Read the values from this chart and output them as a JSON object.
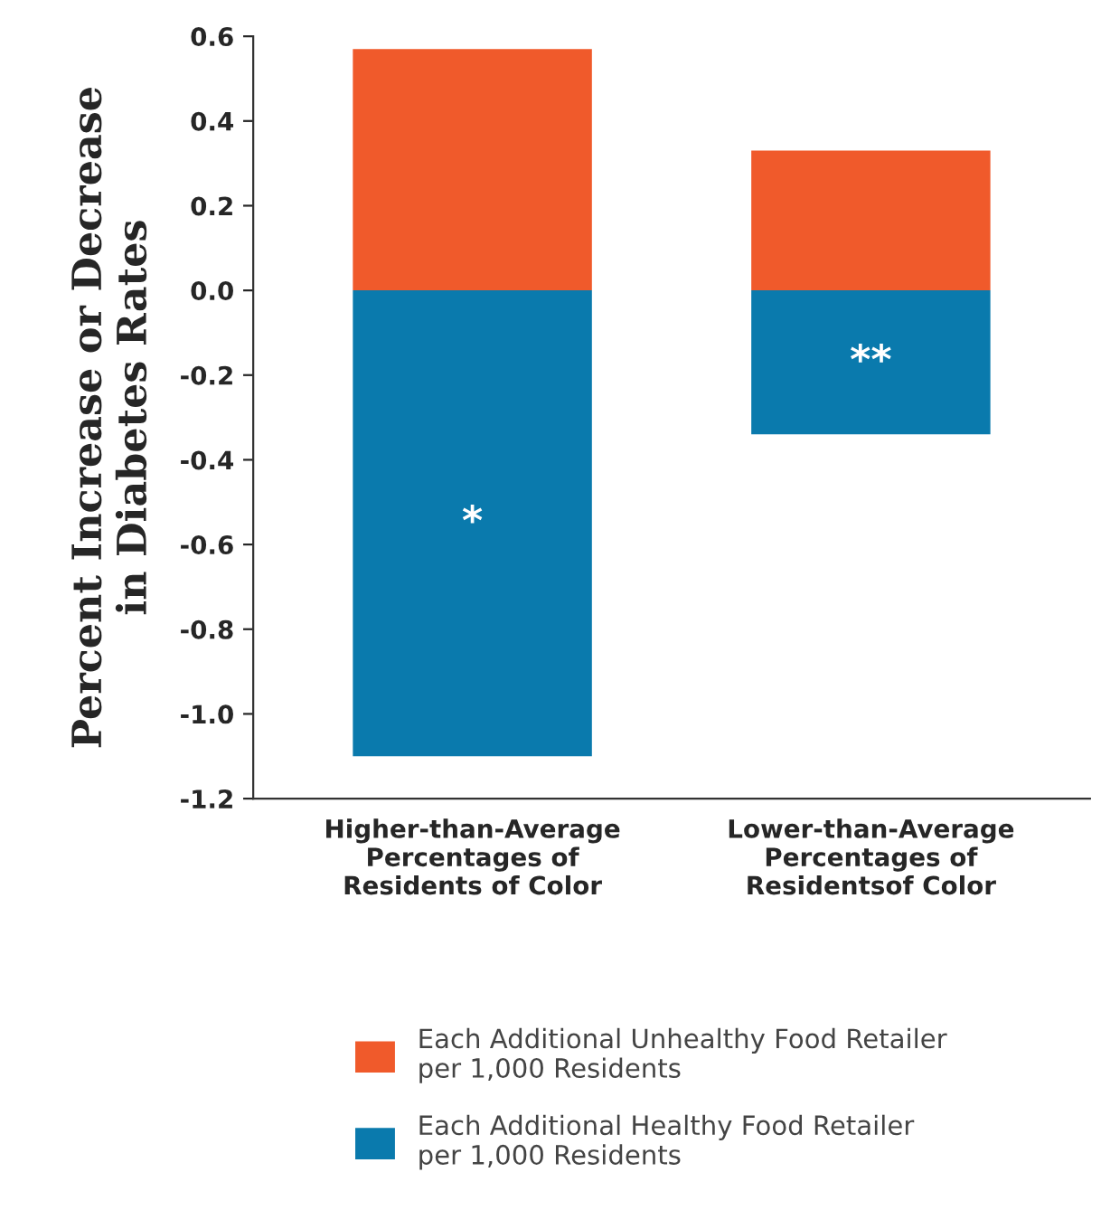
{
  "chart_data": {
    "type": "bar",
    "stacked": true,
    "ylabel": "Percent Increase or Decrease\nin Diabetes Rates",
    "categories": [
      "Higher-than-Average\nPercentages of\nResidents of Color",
      "Lower-than-Average\nPercentages of\nResidentsof Color"
    ],
    "series": [
      {
        "name": "Each Additional Unhealthy Food Retailer\nper 1,000 Residents",
        "color": "#f05a2b",
        "values": [
          0.57,
          0.33
        ]
      },
      {
        "name": "Each Additional Healthy Food Retailer\nper 1,000 Residents",
        "color": "#0a7aad",
        "values": [
          -1.1,
          -0.34
        ]
      }
    ],
    "ylim": [
      -1.2,
      0.6
    ],
    "yticks": [
      {
        "value": -1.2,
        "label": "-1.2"
      },
      {
        "value": -1.0,
        "label": "-1.0"
      },
      {
        "value": -0.8,
        "label": "-0.8"
      },
      {
        "value": -0.6,
        "label": "-0.6"
      },
      {
        "value": -0.4,
        "label": "-0.4"
      },
      {
        "value": -0.2,
        "label": "-0.2"
      },
      {
        "value": 0.0,
        "label": "0.0"
      },
      {
        "value": 0.2,
        "label": "0.2"
      },
      {
        "value": 0.4,
        "label": "0.4"
      },
      {
        "value": 0.6,
        "label": "0.6"
      }
    ],
    "annotations": [
      "*",
      "**"
    ],
    "legend": "bottom",
    "grid": false
  }
}
